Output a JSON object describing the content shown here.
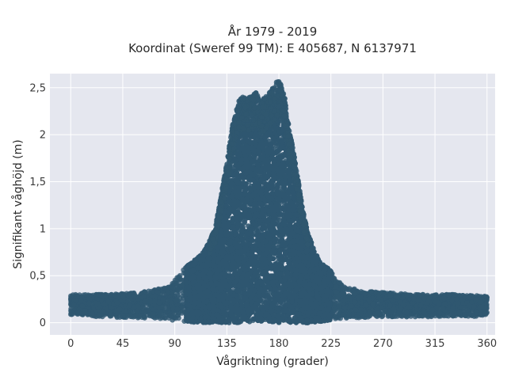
{
  "chart_data": {
    "type": "scatter",
    "title_line1": "År 1979 - 2019",
    "title_line2": "Koordinat (Sweref 99 TM): E 405687, N 6137971",
    "xlabel": "Vågriktning (grader)",
    "ylabel": "Signifikant våghöjd (m)",
    "xlim": [
      -18,
      367
    ],
    "ylim": [
      -0.13,
      2.65
    ],
    "x_ticks": [
      0,
      45,
      90,
      135,
      180,
      225,
      270,
      315,
      360
    ],
    "x_tick_labels": [
      "0",
      "45",
      "90",
      "135",
      "180",
      "225",
      "270",
      "315",
      "360"
    ],
    "y_ticks": [
      0,
      0.5,
      1,
      1.5,
      2,
      2.5
    ],
    "y_tick_labels": [
      "0",
      "0,5",
      "1",
      "1,5",
      "2",
      "2,5"
    ],
    "grid": true,
    "marker_color": "#2f5770",
    "background_color": "#e5e7ef",
    "envelope": {
      "x": [
        0,
        30,
        60,
        85,
        100,
        115,
        125,
        130,
        135,
        140,
        145,
        150,
        155,
        160,
        165,
        170,
        175,
        180,
        185,
        190,
        195,
        200,
        205,
        210,
        215,
        220,
        225,
        230,
        240,
        250,
        270,
        300,
        330,
        360
      ],
      "y_max": [
        0.3,
        0.3,
        0.32,
        0.38,
        0.6,
        0.75,
        1.0,
        1.35,
        1.7,
        2.1,
        2.35,
        2.42,
        2.4,
        2.45,
        2.35,
        2.45,
        2.5,
        2.6,
        2.4,
        2.0,
        1.65,
        1.25,
        0.95,
        0.8,
        0.65,
        0.6,
        0.55,
        0.45,
        0.38,
        0.34,
        0.32,
        0.3,
        0.3,
        0.28
      ],
      "y_min": [
        0.08,
        0.06,
        0.05,
        0.03,
        0.01,
        0.0,
        0.0,
        0.0,
        0.0,
        0.0,
        0.0,
        0.0,
        0.0,
        0.0,
        0.0,
        0.0,
        0.0,
        0.0,
        0.0,
        0.0,
        0.0,
        0.0,
        0.0,
        0.0,
        0.01,
        0.02,
        0.03,
        0.04,
        0.05,
        0.05,
        0.06,
        0.06,
        0.06,
        0.07
      ]
    }
  }
}
